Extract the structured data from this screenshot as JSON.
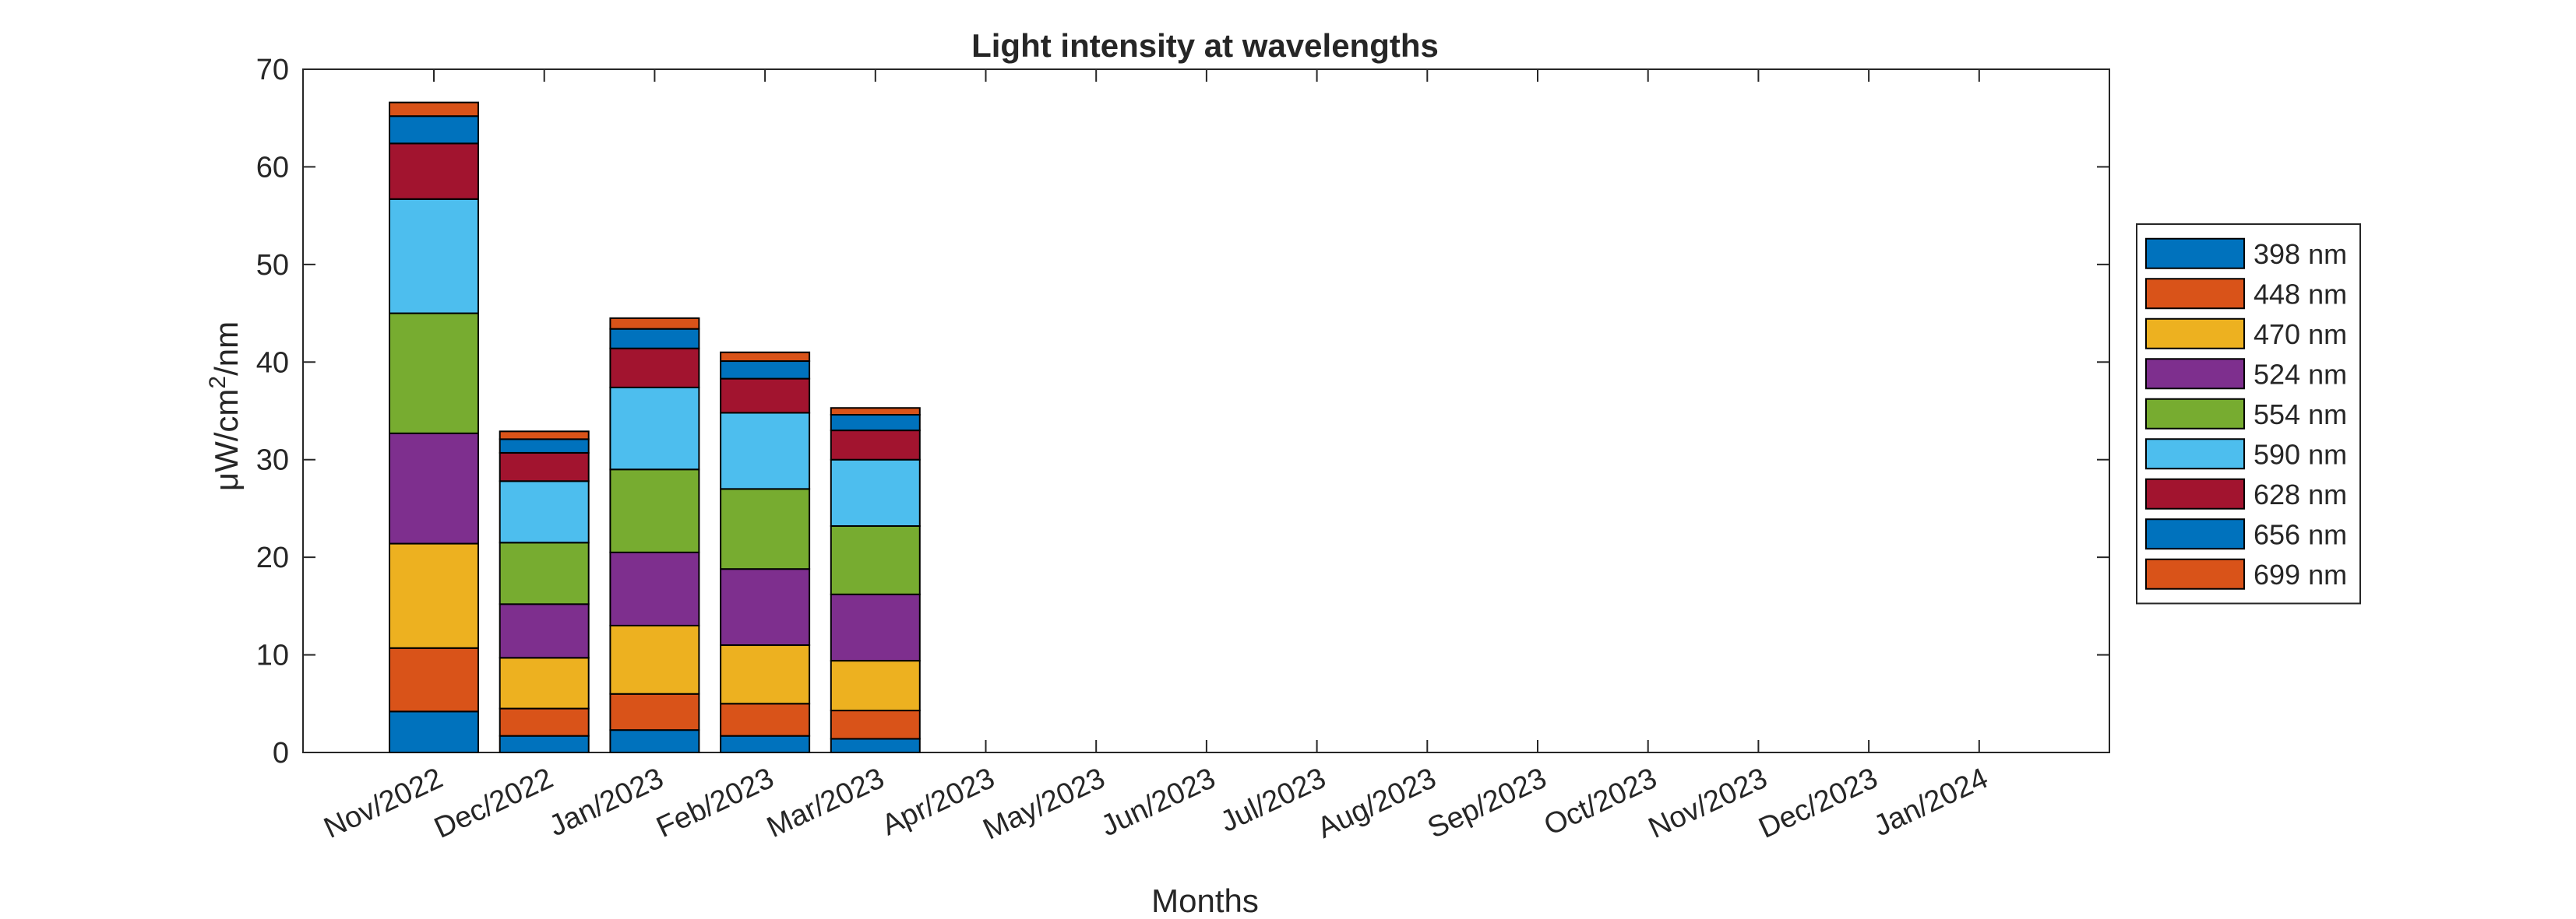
{
  "chart_data": {
    "type": "bar",
    "stacked": true,
    "title": "Light intensity at wavelengths",
    "xlabel": "Months",
    "ylabel": "μW/cm²/nm",
    "ylim": [
      0,
      70
    ],
    "yticks": [
      0,
      10,
      20,
      30,
      40,
      50,
      60,
      70
    ],
    "grid": false,
    "legend_position": "right-outside",
    "categories": [
      "Nov/2022",
      "Dec/2022",
      "Jan/2023",
      "Feb/2023",
      "Mar/2023",
      "Apr/2023",
      "May/2023",
      "Jun/2023",
      "Jul/2023",
      "Aug/2023",
      "Sep/2023",
      "Oct/2023",
      "Nov/2023",
      "Dec/2023",
      "Jan/2024"
    ],
    "series": [
      {
        "name": "398 nm",
        "color": "#0072BD",
        "values": [
          4.2,
          1.7,
          2.3,
          1.7,
          1.4,
          0,
          0,
          0,
          0,
          0,
          0,
          0,
          0,
          0,
          0
        ]
      },
      {
        "name": "448 nm",
        "color": "#D95319",
        "values": [
          6.5,
          2.8,
          3.7,
          3.3,
          2.9,
          0,
          0,
          0,
          0,
          0,
          0,
          0,
          0,
          0,
          0
        ]
      },
      {
        "name": "470 nm",
        "color": "#EDB120",
        "values": [
          10.7,
          5.2,
          7.0,
          6.0,
          5.1,
          0,
          0,
          0,
          0,
          0,
          0,
          0,
          0,
          0,
          0
        ]
      },
      {
        "name": "524 nm",
        "color": "#7E2F8E",
        "values": [
          11.3,
          5.5,
          7.5,
          7.8,
          6.8,
          0,
          0,
          0,
          0,
          0,
          0,
          0,
          0,
          0,
          0
        ]
      },
      {
        "name": "554 nm",
        "color": "#77AC30",
        "values": [
          12.3,
          6.3,
          8.5,
          8.2,
          7.0,
          0,
          0,
          0,
          0,
          0,
          0,
          0,
          0,
          0,
          0
        ]
      },
      {
        "name": "590 nm",
        "color": "#4DBEEE",
        "values": [
          11.7,
          6.3,
          8.4,
          7.8,
          6.8,
          0,
          0,
          0,
          0,
          0,
          0,
          0,
          0,
          0,
          0
        ]
      },
      {
        "name": "628 nm",
        "color": "#A2142F",
        "values": [
          5.7,
          2.9,
          4.0,
          3.5,
          3.0,
          0,
          0,
          0,
          0,
          0,
          0,
          0,
          0,
          0,
          0
        ]
      },
      {
        "name": "656 nm",
        "color": "#0072BD",
        "values": [
          2.8,
          1.4,
          2.0,
          1.8,
          1.6,
          0,
          0,
          0,
          0,
          0,
          0,
          0,
          0,
          0,
          0
        ]
      },
      {
        "name": "699 nm",
        "color": "#D95319",
        "values": [
          1.4,
          0.8,
          1.1,
          0.9,
          0.7,
          0,
          0,
          0,
          0,
          0,
          0,
          0,
          0,
          0,
          0
        ]
      }
    ]
  }
}
